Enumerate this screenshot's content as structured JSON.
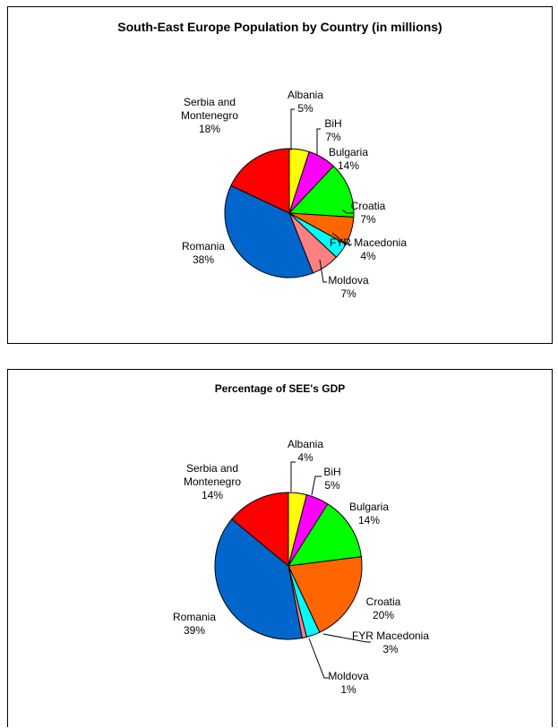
{
  "chart_data": [
    {
      "type": "pie",
      "title": "South-East Europe Population by Country (in millions)",
      "categories": [
        "Albania",
        "BiH",
        "Bulgaria",
        "Croatia",
        "FYR Macedonia",
        "Moldova",
        "Romania",
        "Serbia and Montenegro"
      ],
      "values": [
        5,
        7,
        14,
        7,
        4,
        7,
        38,
        18
      ],
      "value_labels": [
        "5%",
        "7%",
        "14%",
        "7%",
        "4%",
        "7%",
        "38%",
        "18%"
      ],
      "colors": [
        "#ffff00",
        "#ff00ff",
        "#00ff00",
        "#ff6600",
        "#00ffff",
        "#ff8080",
        "#0066cc",
        "#ff0000"
      ],
      "start": "12 o'clock, clockwise"
    },
    {
      "type": "pie",
      "title": "Percentage of SEE's GDP",
      "categories": [
        "Albania",
        "BiH",
        "Bulgaria",
        "Croatia",
        "FYR Macedonia",
        "Moldova",
        "Romania",
        "Serbia and Montenegro"
      ],
      "values": [
        4,
        5,
        14,
        20,
        3,
        1,
        39,
        14
      ],
      "value_labels": [
        "4%",
        "5%",
        "14%",
        "20%",
        "3%",
        "1%",
        "39%",
        "14%"
      ],
      "colors": [
        "#ffff00",
        "#ff00ff",
        "#00ff00",
        "#ff6600",
        "#00ffff",
        "#ff8080",
        "#0066cc",
        "#ff0000"
      ],
      "start": "12 o'clock, clockwise"
    }
  ]
}
